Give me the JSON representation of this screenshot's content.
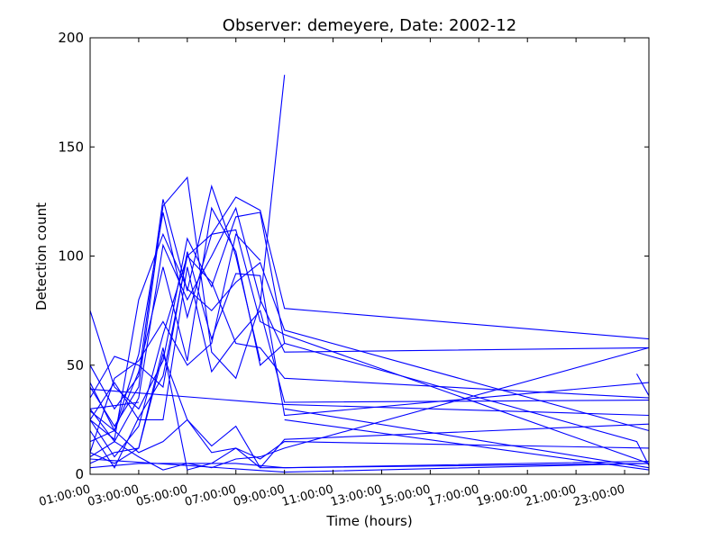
{
  "chart_data": {
    "type": "line",
    "title": "Observer: demeyere, Date: 2002-12",
    "xlabel": "Time (hours)",
    "ylabel": "Detection count",
    "xlim": [
      "01:00:00",
      "24:00:00"
    ],
    "ylim": [
      0,
      200
    ],
    "x_ticks": [
      "01:00:00",
      "03:00:00",
      "05:00:00",
      "07:00:00",
      "09:00:00",
      "11:00:00",
      "13:00:00",
      "15:00:00",
      "17:00:00",
      "19:00:00",
      "21:00:00",
      "23:00:00"
    ],
    "y_ticks": [
      0,
      50,
      100,
      150,
      200
    ],
    "line_color": "#0000ff",
    "grid": false,
    "legend": "none",
    "series": [
      {
        "x": [
          "01:00:00",
          "02:00:00",
          "03:00:00",
          "04:00:00",
          "05:00:00",
          "06:00:00",
          "07:00:00",
          "08:00:00",
          "09:00:00"
        ],
        "y": [
          75,
          40,
          30,
          52,
          108,
          86,
          118,
          120,
          60
        ]
      },
      {
        "x": [
          "01:00:00",
          "02:00:00",
          "03:00:00",
          "04:00:00",
          "05:00:00",
          "06:00:00",
          "07:00:00",
          "08:00:00",
          "09:00:00",
          "23:30:00",
          "24:00:00"
        ],
        "y": [
          29,
          20,
          47,
          95,
          52,
          122,
          102,
          50,
          60,
          15,
          4
        ]
      },
      {
        "x": [
          "01:00:00",
          "02:00:00",
          "03:00:00",
          "04:00:00",
          "05:00:00",
          "06:00:00",
          "07:00:00",
          "08:00:00"
        ],
        "y": [
          50,
          30,
          45,
          126,
          84,
          132,
          100,
          52
        ]
      },
      {
        "x": [
          "01:00:00",
          "02:00:00",
          "03:00:00",
          "04:00:00",
          "05:00:00",
          "06:00:00",
          "07:00:00",
          "08:00:00",
          "09:00:00",
          "24:00:00"
        ],
        "y": [
          42,
          20,
          55,
          120,
          72,
          110,
          127,
          121,
          76,
          62
        ]
      },
      {
        "x": [
          "01:00:00",
          "02:00:00",
          "03:00:00",
          "04:00:00",
          "05:00:00",
          "06:00:00",
          "07:00:00",
          "08:00:00",
          "09:00:00",
          "24:00:00"
        ],
        "y": [
          30,
          15,
          35,
          105,
          80,
          100,
          122,
          80,
          56,
          58
        ]
      },
      {
        "x": [
          "01:00:00",
          "02:00:00",
          "03:00:00",
          "04:00:00",
          "05:00:00",
          "06:00:00",
          "07:00:00",
          "08:00:00",
          "09:00:00",
          "24:00:00"
        ],
        "y": [
          25,
          8,
          22,
          64,
          100,
          110,
          112,
          70,
          64,
          5
        ]
      },
      {
        "x": [
          "01:00:00",
          "02:00:00",
          "03:00:00",
          "04:00:00",
          "05:00:00",
          "06:00:00",
          "07:00:00",
          "08:00:00",
          "09:00:00",
          "24:00:00"
        ],
        "y": [
          25,
          16,
          80,
          110,
          85,
          75,
          88,
          97,
          66,
          20
        ]
      },
      {
        "x": [
          "01:00:00",
          "02:00:00",
          "03:00:00",
          "04:00:00",
          "05:00:00",
          "06:00:00",
          "07:00:00",
          "08:00:00",
          "09:00:00"
        ],
        "y": [
          40,
          22,
          40,
          123,
          136,
          56,
          44,
          78,
          183
        ]
      },
      {
        "x": [
          "01:00:00",
          "02:00:00",
          "03:00:00",
          "04:00:00",
          "05:00:00",
          "06:00:00",
          "07:00:00",
          "08:00:00"
        ],
        "y": [
          10,
          44,
          52,
          70,
          50,
          60,
          110,
          98
        ]
      },
      {
        "x": [
          "01:00:00",
          "02:00:00",
          "03:00:00",
          "04:00:00",
          "05:00:00",
          "06:00:00",
          "07:00:00",
          "08:00:00",
          "09:00:00",
          "24:00:00"
        ],
        "y": [
          20,
          3,
          26,
          45,
          100,
          88,
          60,
          58,
          44,
          35
        ]
      },
      {
        "x": [
          "01:00:00",
          "02:00:00",
          "03:00:00",
          "04:00:00",
          "05:00:00",
          "06:00:00",
          "07:00:00",
          "08:00:00",
          "09:00:00",
          "24:00:00"
        ],
        "y": [
          25,
          42,
          25,
          25,
          95,
          47,
          62,
          75,
          33,
          34
        ]
      },
      {
        "x": [
          "01:00:00",
          "02:00:00",
          "03:00:00",
          "04:00:00",
          "05:00:00",
          "06:00:00",
          "07:00:00",
          "08:00:00",
          "09:00:00",
          "24:00:00"
        ],
        "y": [
          35,
          54,
          50,
          40,
          102,
          62,
          92,
          91,
          27,
          42
        ]
      },
      {
        "x": [
          "01:00:00",
          "02:00:00",
          "03:00:00",
          "04:00:00",
          "05:00:00",
          "06:00:00",
          "07:00:00",
          "08:00:00",
          "09:00:00",
          "24:00:00"
        ],
        "y": [
          10,
          5,
          12,
          55,
          25,
          10,
          12,
          7,
          15,
          12
        ]
      },
      {
        "x": [
          "01:00:00",
          "02:00:00",
          "03:00:00",
          "04:00:00",
          "05:00:00",
          "06:00:00",
          "07:00:00",
          "08:00:00",
          "09:00:00",
          "24:00:00"
        ],
        "y": [
          15,
          20,
          10,
          15,
          25,
          13,
          22,
          3,
          16,
          23
        ]
      },
      {
        "x": [
          "01:00:00",
          "02:00:00",
          "03:00:00",
          "04:00:00",
          "05:00:00",
          "06:00:00",
          "07:00:00",
          "08:00:00",
          "09:00:00",
          "24:00:00"
        ],
        "y": [
          5,
          10,
          12,
          58,
          2,
          5,
          12,
          3,
          3,
          6
        ]
      },
      {
        "x": [
          "01:00:00",
          "02:00:00",
          "03:00:00",
          "04:00:00",
          "05:00:00",
          "06:00:00",
          "07:00:00",
          "08:00:00",
          "09:00:00",
          "24:00:00"
        ],
        "y": [
          8,
          15,
          8,
          2,
          5,
          3,
          7,
          8,
          12,
          58
        ]
      },
      {
        "x": [
          "01:00:00",
          "09:00:00",
          "24:00:00"
        ],
        "y": [
          39,
          32,
          27
        ]
      },
      {
        "x": [
          "01:00:00",
          "09:00:00",
          "24:00:00"
        ],
        "y": [
          7,
          1,
          5
        ]
      },
      {
        "x": [
          "01:00:00",
          "03:00:00",
          "07:00:00",
          "09:00:00",
          "24:00:00"
        ],
        "y": [
          3,
          5,
          5,
          3,
          5
        ]
      },
      {
        "x": [
          "09:00:00",
          "24:00:00"
        ],
        "y": [
          30,
          3
        ]
      },
      {
        "x": [
          "09:00:00",
          "24:00:00"
        ],
        "y": [
          25,
          2
        ]
      },
      {
        "x": [
          "01:00:00",
          "03:00:00"
        ],
        "y": [
          30,
          33
        ]
      },
      {
        "x": [
          "23:30:00",
          "24:00:00"
        ],
        "y": [
          46,
          36
        ]
      }
    ]
  }
}
